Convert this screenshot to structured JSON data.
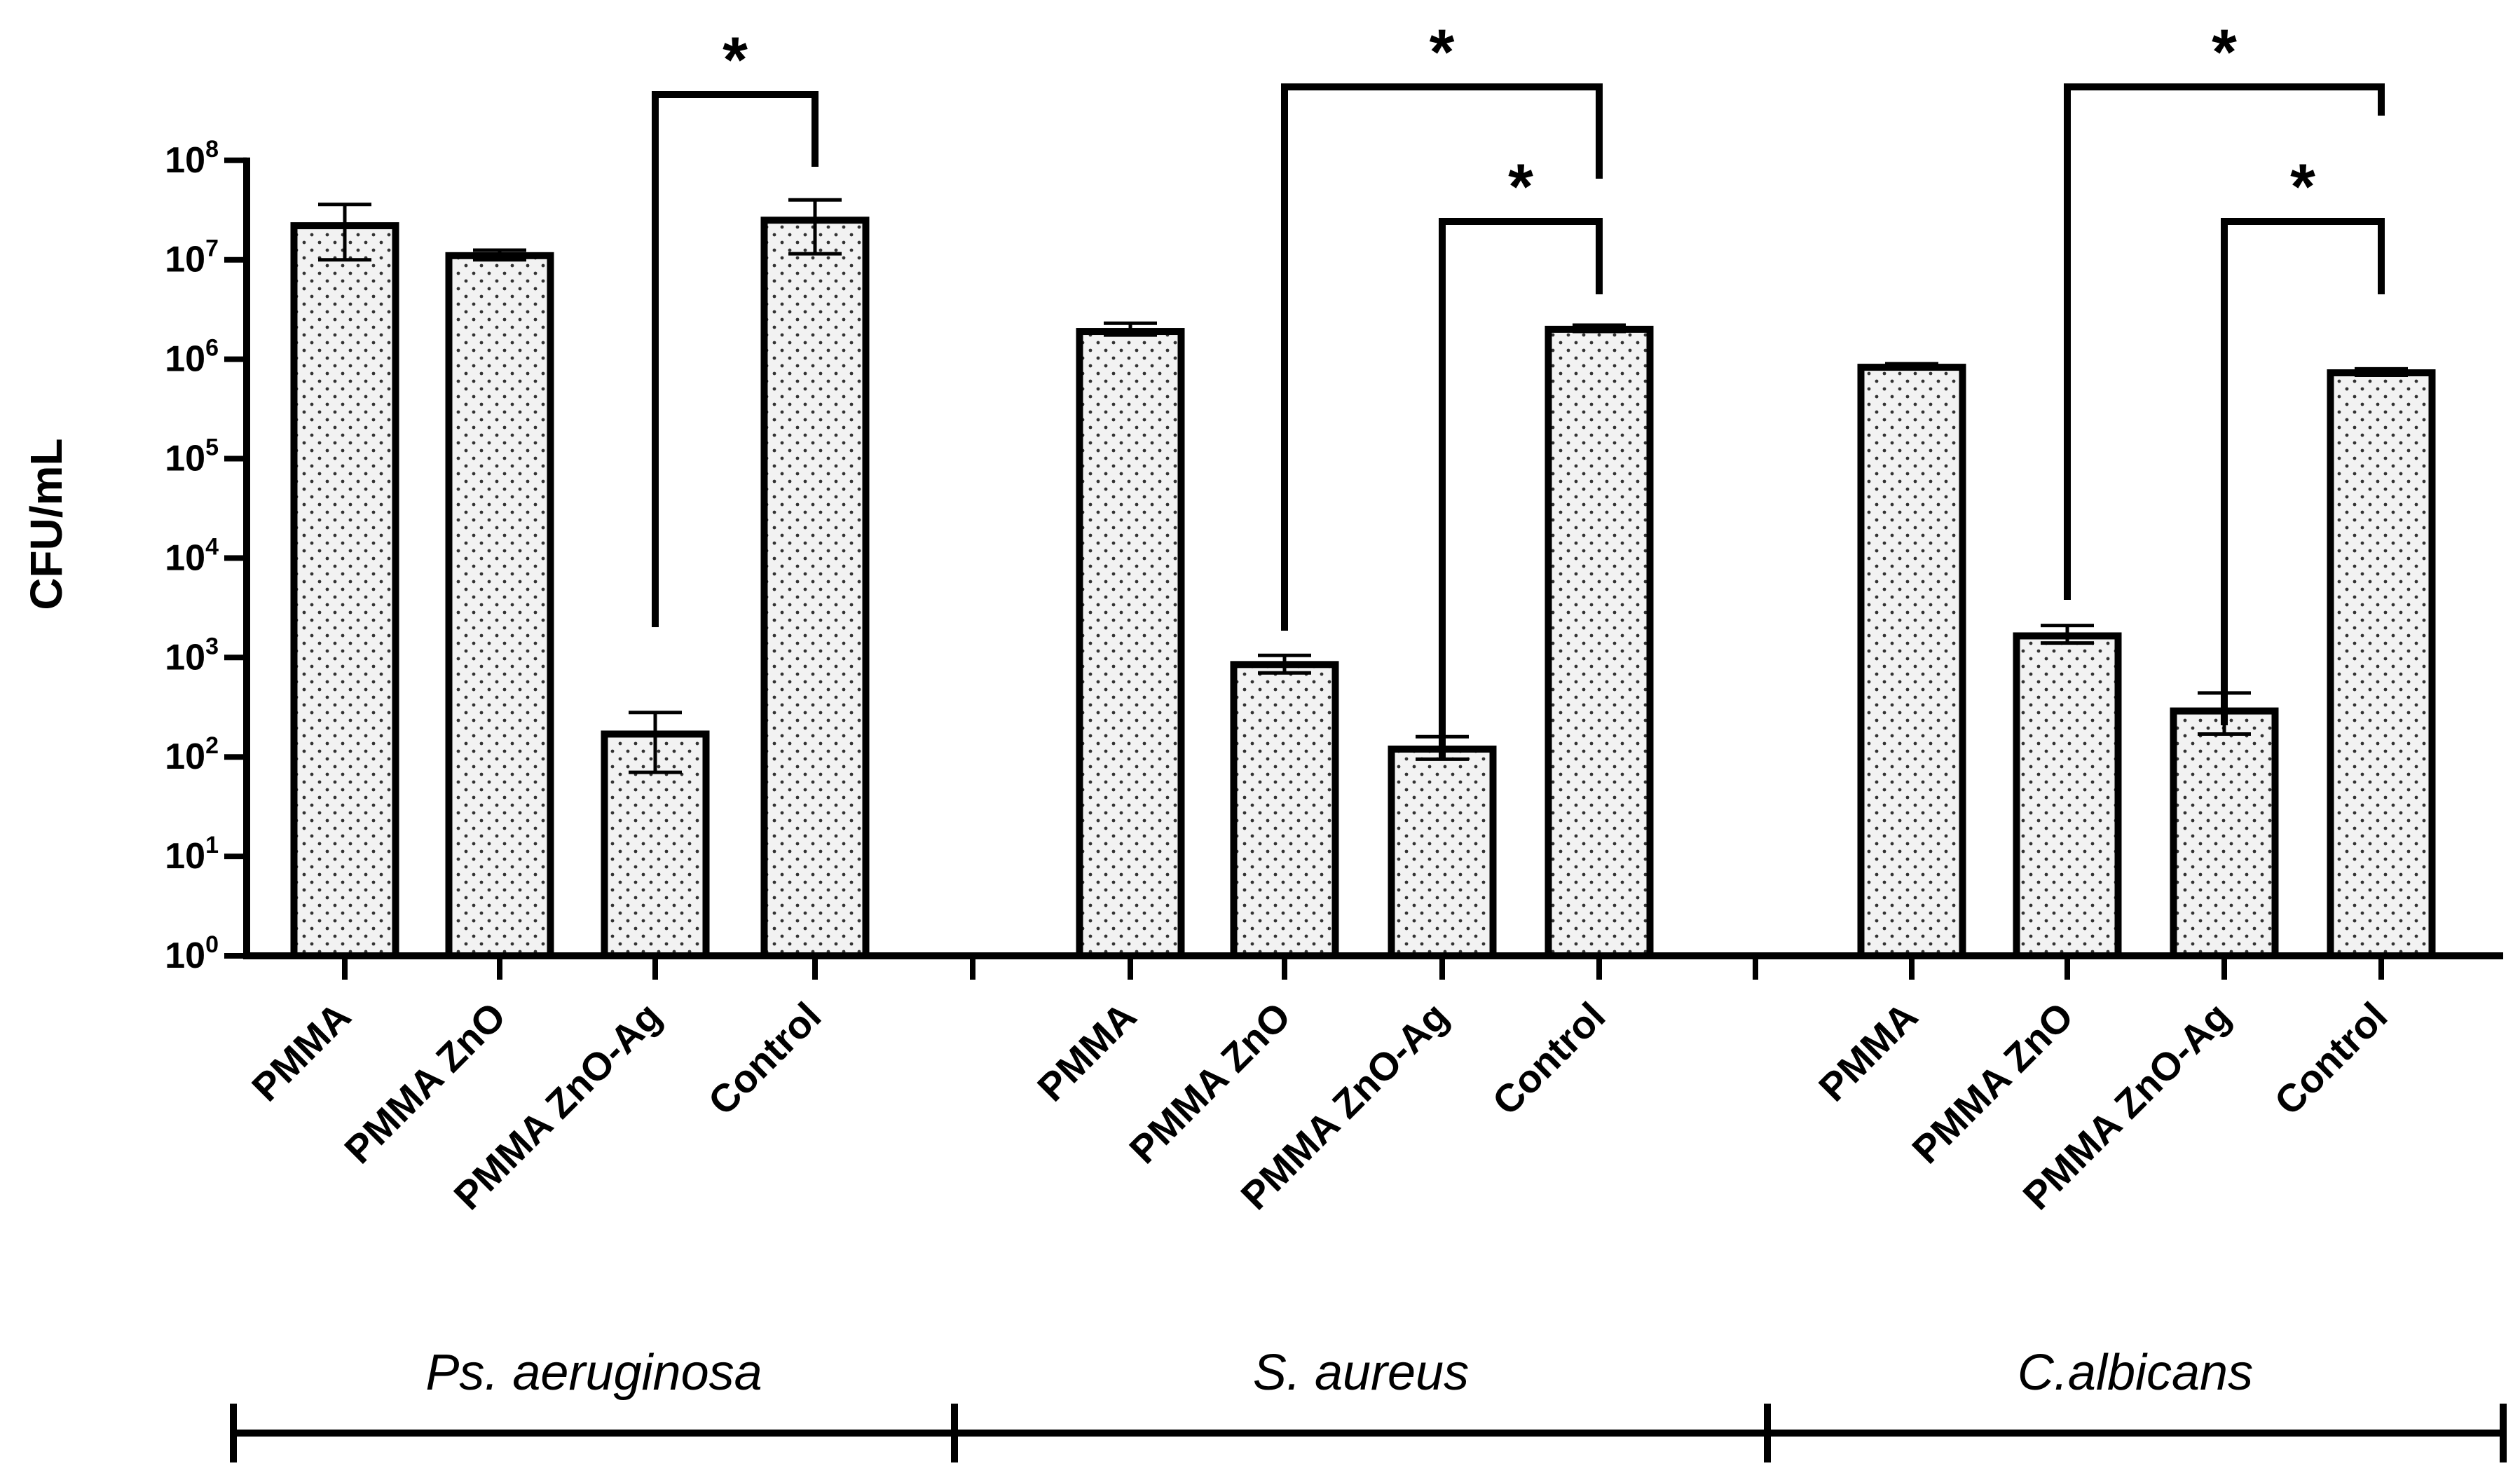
{
  "chart_data": {
    "type": "bar",
    "title": "",
    "xlabel": "",
    "ylabel": "CFU/mL",
    "yscale": "log10",
    "ylim": [
      1,
      100000000
    ],
    "yticks": [
      {
        "base": "10",
        "exp": "0"
      },
      {
        "base": "10",
        "exp": "1"
      },
      {
        "base": "10",
        "exp": "2"
      },
      {
        "base": "10",
        "exp": "3"
      },
      {
        "base": "10",
        "exp": "4"
      },
      {
        "base": "10",
        "exp": "5"
      },
      {
        "base": "10",
        "exp": "6"
      },
      {
        "base": "10",
        "exp": "7"
      },
      {
        "base": "10",
        "exp": "8"
      }
    ],
    "groups": [
      {
        "name": "Ps. aeruginosa",
        "bars": [
          {
            "label": "PMMA",
            "value": 22000000,
            "err_low": 10000000,
            "err_high": 36000000
          },
          {
            "label": "PMMA ZnO",
            "value": 11000000,
            "err_low": 10000000,
            "err_high": 12500000
          },
          {
            "label": "PMMA ZnO-Ag",
            "value": 170,
            "err_low": 70,
            "err_high": 280
          },
          {
            "label": "Control",
            "value": 25000000,
            "err_low": 11500000,
            "err_high": 40000000
          }
        ]
      },
      {
        "name": "S. aureus",
        "bars": [
          {
            "label": "PMMA",
            "value": 1900000,
            "err_low": 1750000,
            "err_high": 2300000
          },
          {
            "label": "PMMA ZnO",
            "value": 850,
            "err_low": 700,
            "err_high": 1050
          },
          {
            "label": "PMMA ZnO-Ag",
            "value": 120,
            "err_low": 95,
            "err_high": 160
          },
          {
            "label": "Control",
            "value": 2000000,
            "err_low": 1900000,
            "err_high": 2200000
          }
        ]
      },
      {
        "name": "C.albicans",
        "bars": [
          {
            "label": "PMMA",
            "value": 830000,
            "err_low": 800000,
            "err_high": 900000
          },
          {
            "label": "PMMA ZnO",
            "value": 1650,
            "err_low": 1400,
            "err_high": 2100
          },
          {
            "label": "PMMA ZnO-Ag",
            "value": 290,
            "err_low": 170,
            "err_high": 440
          },
          {
            "label": "Control",
            "value": 730000,
            "err_low": 690000,
            "err_high": 800000
          }
        ]
      }
    ],
    "significance": [
      {
        "group": 0,
        "from": 2,
        "to": 3,
        "label": "*"
      },
      {
        "group": 1,
        "from": 1,
        "to": 3,
        "label": "*"
      },
      {
        "group": 1,
        "from": 2,
        "to": 3,
        "label": "*"
      },
      {
        "group": 2,
        "from": 1,
        "to": 3,
        "label": "*"
      },
      {
        "group": 2,
        "from": 2,
        "to": 3,
        "label": "*"
      }
    ]
  }
}
